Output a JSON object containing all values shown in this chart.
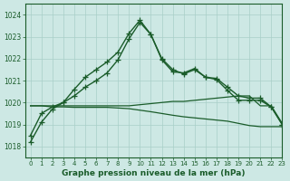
{
  "title": "Graphe pression niveau de la mer (hPa)",
  "bg_color": "#cde8e4",
  "grid_color": "#a8cfc8",
  "line_color": "#1a5c2a",
  "xlim": [
    -0.5,
    23
  ],
  "ylim": [
    1017.5,
    1024.5
  ],
  "yticks": [
    1018,
    1019,
    1020,
    1021,
    1022,
    1023,
    1024
  ],
  "xticks": [
    0,
    1,
    2,
    3,
    4,
    5,
    6,
    7,
    8,
    9,
    10,
    11,
    12,
    13,
    14,
    15,
    16,
    17,
    18,
    19,
    20,
    21,
    22,
    23
  ],
  "hours": [
    0,
    1,
    2,
    3,
    4,
    5,
    6,
    7,
    8,
    9,
    10,
    11,
    12,
    13,
    14,
    15,
    16,
    17,
    18,
    19,
    20,
    21,
    22,
    23
  ],
  "line_main": [
    1018.2,
    1019.1,
    1019.7,
    1020.0,
    1020.6,
    1021.15,
    1021.5,
    1021.85,
    1022.3,
    1023.15,
    1023.75,
    1023.1,
    1022.0,
    1021.5,
    1021.3,
    1021.5,
    1021.15,
    1021.1,
    1020.7,
    1020.3,
    1020.2,
    1020.2,
    1019.8,
    1019.0
  ],
  "line_second": [
    1018.5,
    1019.5,
    1019.8,
    1020.0,
    1020.3,
    1020.7,
    1021.0,
    1021.35,
    1021.95,
    1022.9,
    1023.65,
    1023.1,
    1021.95,
    1021.4,
    1021.35,
    1021.55,
    1021.15,
    1021.05,
    1020.55,
    1020.1,
    1020.1,
    1020.1,
    1019.8,
    1019.0
  ],
  "line_upper_env": [
    1019.85,
    1019.85,
    1019.85,
    1019.85,
    1019.85,
    1019.85,
    1019.85,
    1019.85,
    1019.85,
    1019.85,
    1019.9,
    1019.95,
    1020.0,
    1020.05,
    1020.05,
    1020.1,
    1020.15,
    1020.2,
    1020.25,
    1020.3,
    1020.3,
    1019.85,
    1019.85,
    1019.05
  ],
  "line_lower_env": [
    1019.85,
    1019.85,
    1019.8,
    1019.8,
    1019.78,
    1019.78,
    1019.78,
    1019.78,
    1019.75,
    1019.72,
    1019.65,
    1019.58,
    1019.5,
    1019.42,
    1019.35,
    1019.3,
    1019.25,
    1019.2,
    1019.15,
    1019.05,
    1018.95,
    1018.9,
    1018.9,
    1018.9
  ]
}
